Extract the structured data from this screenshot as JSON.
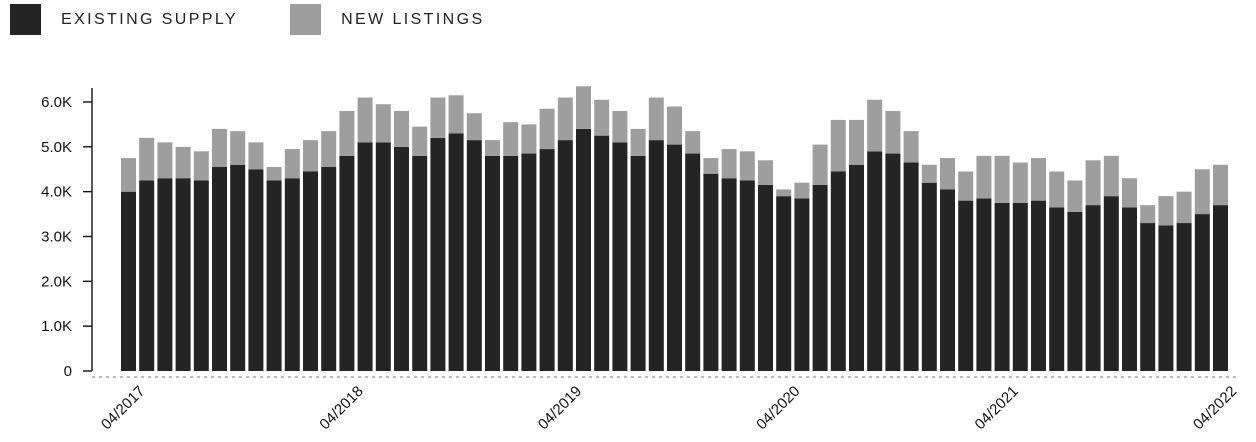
{
  "chart_data": {
    "type": "bar",
    "stacked": true,
    "title": "",
    "xlabel": "",
    "ylabel": "",
    "ylim": [
      0,
      6000
    ],
    "y_ticks": [
      0,
      1000,
      2000,
      3000,
      4000,
      5000,
      6000
    ],
    "y_tick_labels": [
      "0",
      "1.0K",
      "2.0K",
      "3.0K",
      "4.0K",
      "5.0K",
      "6.0K"
    ],
    "x_tick_labels": [
      {
        "index": 1,
        "label": "04/2017"
      },
      {
        "index": 13,
        "label": "04/2018"
      },
      {
        "index": 25,
        "label": "04/2019"
      },
      {
        "index": 37,
        "label": "04/2020"
      },
      {
        "index": 49,
        "label": "04/2021"
      },
      {
        "index": 61,
        "label": "04/2022"
      }
    ],
    "grid": false,
    "legend_position": "top-left",
    "series": [
      {
        "name": "EXISTING SUPPLY",
        "color": "#242424",
        "values": [
          4000,
          4250,
          4300,
          4300,
          4250,
          4550,
          4600,
          4500,
          4250,
          4300,
          4450,
          4550,
          4800,
          5100,
          5100,
          5000,
          4800,
          5200,
          5300,
          5150,
          4800,
          4800,
          4850,
          4950,
          5150,
          5400,
          5250,
          5100,
          4800,
          5150,
          5050,
          4850,
          4400,
          4300,
          4250,
          4150,
          3900,
          3850,
          4150,
          4450,
          4600,
          4900,
          4850,
          4650,
          4200,
          4050,
          3800,
          3850,
          3750,
          3750,
          3800,
          3650,
          3550,
          3700,
          3900,
          3650,
          3300,
          3250,
          3300,
          3500,
          3700
        ]
      },
      {
        "name": "NEW LISTINGS",
        "color": "#9e9e9e",
        "values": [
          750,
          950,
          800,
          700,
          650,
          850,
          750,
          600,
          300,
          650,
          700,
          800,
          1000,
          1000,
          850,
          800,
          650,
          900,
          850,
          600,
          350,
          750,
          650,
          900,
          950,
          950,
          800,
          700,
          600,
          950,
          850,
          500,
          350,
          650,
          650,
          550,
          150,
          350,
          900,
          1150,
          1000,
          1150,
          950,
          700,
          400,
          700,
          650,
          950,
          1050,
          900,
          950,
          800,
          700,
          1000,
          900,
          650,
          400,
          650,
          700,
          1000,
          900
        ]
      }
    ]
  }
}
